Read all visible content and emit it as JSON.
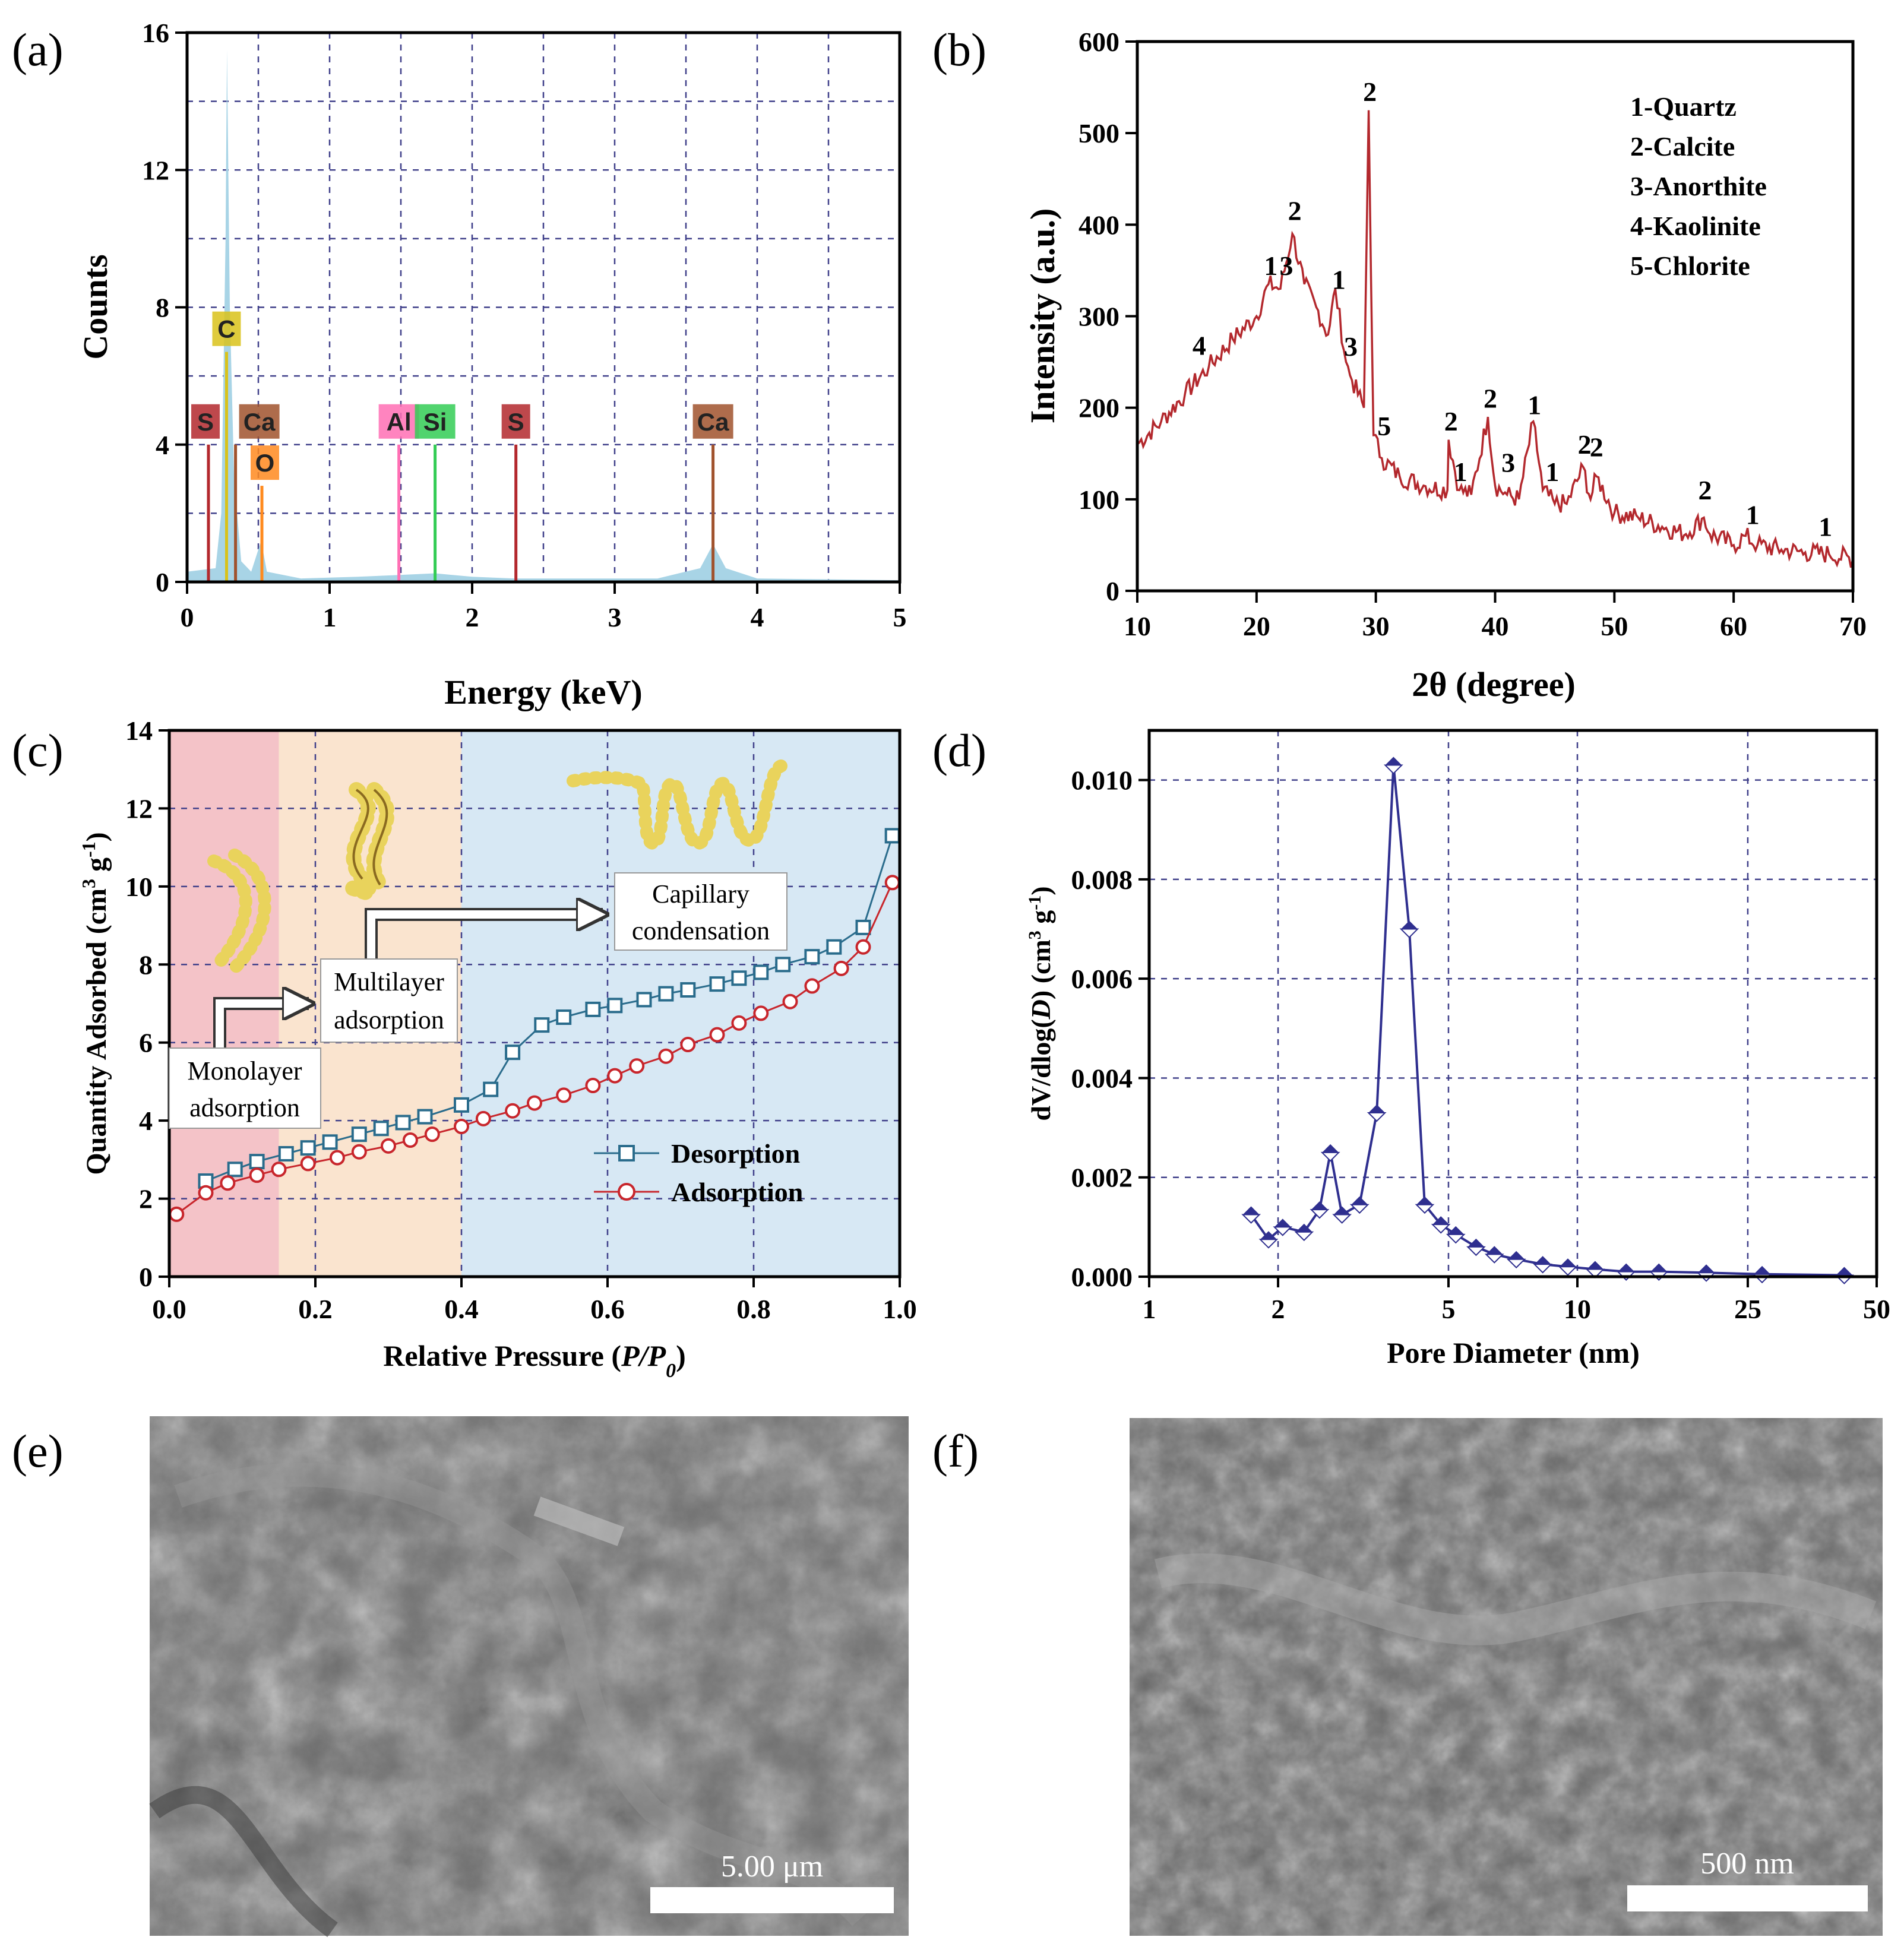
{
  "panel_labels": [
    "(a)",
    "(b)",
    "(c)",
    "(d)",
    "(e)",
    "(f)"
  ],
  "colors": {
    "eds_fill": "#a8d4e6",
    "xrd_line": "#b3282d",
    "desorption": "#2a6c8c",
    "adsorption": "#c8262c",
    "psd_line": "#2f2f8f",
    "zone1": "#f4c3c8",
    "zone2": "#fae4cf",
    "zone3": "#d7e8f4"
  },
  "chart_data": [
    {
      "panel": "(a)",
      "type": "area",
      "xlabel": "Energy (keV)",
      "ylabel": "Counts",
      "xlim": [
        0,
        5
      ],
      "ylim": [
        0,
        16
      ],
      "xticks": [
        0,
        1,
        2,
        3,
        4,
        5
      ],
      "yticks": [
        0,
        4,
        8,
        12,
        16
      ],
      "spectrum": [
        [
          0.0,
          0.3
        ],
        [
          0.2,
          0.4
        ],
        [
          0.24,
          2.0
        ],
        [
          0.27,
          10.0
        ],
        [
          0.28,
          15.5
        ],
        [
          0.3,
          8.0
        ],
        [
          0.33,
          3.0
        ],
        [
          0.38,
          0.6
        ],
        [
          0.45,
          0.3
        ],
        [
          0.52,
          1.2
        ],
        [
          0.56,
          0.3
        ],
        [
          0.8,
          0.1
        ],
        [
          1.2,
          0.15
        ],
        [
          1.48,
          0.2
        ],
        [
          1.74,
          0.25
        ],
        [
          2.0,
          0.15
        ],
        [
          2.3,
          0.1
        ],
        [
          3.3,
          0.1
        ],
        [
          3.6,
          0.4
        ],
        [
          3.69,
          1.1
        ],
        [
          3.78,
          0.4
        ],
        [
          4.0,
          0.1
        ],
        [
          5.0,
          0.05
        ]
      ],
      "element_lines": [
        {
          "element": "S",
          "energy": 0.15,
          "height": 4.0,
          "color": "#b3282d"
        },
        {
          "element": "C",
          "energy": 0.277,
          "height": 6.7,
          "color": "#d9c21a"
        },
        {
          "element": "Ca",
          "energy": 0.34,
          "height": 4.0,
          "color": "#a0522d"
        },
        {
          "element": "O",
          "energy": 0.525,
          "height": 2.8,
          "color": "#ff8a1e"
        },
        {
          "element": "Al",
          "energy": 1.486,
          "height": 4.0,
          "color": "#ff6fb4"
        },
        {
          "element": "Si",
          "energy": 1.74,
          "height": 4.0,
          "color": "#33cc55"
        },
        {
          "element": "S",
          "energy": 2.307,
          "height": 4.0,
          "color": "#b3282d"
        },
        {
          "element": "Ca",
          "energy": 3.69,
          "height": 4.0,
          "color": "#a0522d"
        }
      ]
    },
    {
      "panel": "(b)",
      "type": "line",
      "xlabel": "2θ (degree)",
      "ylabel": "Intensity (a.u.)",
      "xlim": [
        10,
        70
      ],
      "ylim": [
        0,
        600
      ],
      "xticks": [
        10,
        20,
        30,
        40,
        50,
        60,
        70
      ],
      "yticks": [
        0,
        100,
        200,
        300,
        400,
        500,
        600
      ],
      "series": [
        {
          "name": "XRD",
          "points": [
            [
              10,
              160
            ],
            [
              12,
              185
            ],
            [
              14,
              215
            ],
            [
              16,
              245
            ],
            [
              18,
              275
            ],
            [
              20,
              300
            ],
            [
              21,
              335
            ],
            [
              22,
              330
            ],
            [
              23,
              390
            ],
            [
              24,
              335
            ],
            [
              25,
              310
            ],
            [
              26,
              280
            ],
            [
              26.6,
              330
            ],
            [
              27.5,
              250
            ],
            [
              28,
              230
            ],
            [
              29,
              200
            ],
            [
              29.4,
              525
            ],
            [
              29.8,
              170
            ],
            [
              30.5,
              145
            ],
            [
              32,
              125
            ],
            [
              34,
              115
            ],
            [
              36,
              110
            ],
            [
              36.1,
              165
            ],
            [
              37,
              110
            ],
            [
              38,
              105
            ],
            [
              39.4,
              190
            ],
            [
              40,
              115
            ],
            [
              41,
              105
            ],
            [
              42,
              100
            ],
            [
              43.2,
              185
            ],
            [
              44,
              110
            ],
            [
              45,
              95
            ],
            [
              46,
              95
            ],
            [
              47.4,
              135
            ],
            [
              48,
              100
            ],
            [
              48.5,
              125
            ],
            [
              50,
              85
            ],
            [
              52,
              80
            ],
            [
              54,
              70
            ],
            [
              56,
              62
            ],
            [
              57.5,
              80
            ],
            [
              58,
              62
            ],
            [
              60,
              50
            ],
            [
              61,
              60
            ],
            [
              62,
              50
            ],
            [
              64,
              45
            ],
            [
              66,
              42
            ],
            [
              68,
              40
            ],
            [
              70,
              35
            ]
          ]
        }
      ],
      "peak_labels": [
        {
          "text": "4",
          "x": 15.2,
          "y": 258
        },
        {
          "text": "1",
          "x": 21.2,
          "y": 345
        },
        {
          "text": "3",
          "x": 22.5,
          "y": 345
        },
        {
          "text": "2",
          "x": 23.2,
          "y": 405
        },
        {
          "text": "1",
          "x": 26.9,
          "y": 330
        },
        {
          "text": "3",
          "x": 27.9,
          "y": 257
        },
        {
          "text": "2",
          "x": 29.5,
          "y": 535
        },
        {
          "text": "5",
          "x": 30.7,
          "y": 170
        },
        {
          "text": "2",
          "x": 36.3,
          "y": 175
        },
        {
          "text": "1",
          "x": 37.1,
          "y": 120
        },
        {
          "text": "2",
          "x": 39.6,
          "y": 200
        },
        {
          "text": "3",
          "x": 41.1,
          "y": 130
        },
        {
          "text": "1",
          "x": 43.3,
          "y": 193
        },
        {
          "text": "1",
          "x": 44.8,
          "y": 120
        },
        {
          "text": "2",
          "x": 47.5,
          "y": 150
        },
        {
          "text": "2",
          "x": 48.5,
          "y": 147
        },
        {
          "text": "2",
          "x": 57.6,
          "y": 100
        },
        {
          "text": "1",
          "x": 61.6,
          "y": 73
        },
        {
          "text": "1",
          "x": 67.7,
          "y": 60
        }
      ],
      "legend": [
        "1-Quartz",
        "2-Calcite",
        "3-Anorthite",
        "4-Kaolinite",
        "5-Chlorite"
      ]
    },
    {
      "panel": "(c)",
      "type": "line",
      "xlabel": "Relative Pressure (",
      "xlabel_p": "P",
      "xlabel_slash": "/",
      "xlabel_p0": "P",
      "xlabel_sub": "0",
      "xlabel_end": ")",
      "ylabel": "Quantity Adsorbed (cm",
      "ylabel_sup3": "3",
      "ylabel_g": " g",
      "ylabel_supneg": "-1",
      "ylabel_end": ")",
      "xlim": [
        0.0,
        1.0
      ],
      "ylim": [
        0,
        14
      ],
      "xticks": [
        "0.0",
        "0.2",
        "0.4",
        "0.6",
        "0.8",
        "1.0"
      ],
      "yticks": [
        0,
        2,
        4,
        6,
        8,
        10,
        12,
        14
      ],
      "zones": [
        0.15,
        0.4
      ],
      "series": [
        {
          "name": "Desorption",
          "points": [
            [
              0.05,
              2.45
            ],
            [
              0.09,
              2.75
            ],
            [
              0.12,
              2.95
            ],
            [
              0.16,
              3.15
            ],
            [
              0.19,
              3.3
            ],
            [
              0.22,
              3.45
            ],
            [
              0.26,
              3.65
            ],
            [
              0.29,
              3.8
            ],
            [
              0.32,
              3.95
            ],
            [
              0.35,
              4.1
            ],
            [
              0.4,
              4.4
            ],
            [
              0.44,
              4.8
            ],
            [
              0.47,
              5.75
            ],
            [
              0.51,
              6.45
            ],
            [
              0.54,
              6.65
            ],
            [
              0.58,
              6.85
            ],
            [
              0.61,
              6.95
            ],
            [
              0.65,
              7.1
            ],
            [
              0.68,
              7.25
            ],
            [
              0.71,
              7.35
            ],
            [
              0.75,
              7.5
            ],
            [
              0.78,
              7.65
            ],
            [
              0.81,
              7.8
            ],
            [
              0.84,
              8.0
            ],
            [
              0.88,
              8.2
            ],
            [
              0.91,
              8.45
            ],
            [
              0.95,
              8.95
            ],
            [
              0.99,
              11.3
            ]
          ]
        },
        {
          "name": "Adsorption",
          "points": [
            [
              0.01,
              1.6
            ],
            [
              0.05,
              2.15
            ],
            [
              0.08,
              2.4
            ],
            [
              0.12,
              2.6
            ],
            [
              0.15,
              2.75
            ],
            [
              0.19,
              2.9
            ],
            [
              0.23,
              3.05
            ],
            [
              0.26,
              3.2
            ],
            [
              0.3,
              3.35
            ],
            [
              0.33,
              3.5
            ],
            [
              0.36,
              3.65
            ],
            [
              0.4,
              3.85
            ],
            [
              0.43,
              4.05
            ],
            [
              0.47,
              4.25
            ],
            [
              0.5,
              4.45
            ],
            [
              0.54,
              4.65
            ],
            [
              0.58,
              4.9
            ],
            [
              0.61,
              5.15
            ],
            [
              0.64,
              5.4
            ],
            [
              0.68,
              5.65
            ],
            [
              0.71,
              5.95
            ],
            [
              0.75,
              6.2
            ],
            [
              0.78,
              6.5
            ],
            [
              0.81,
              6.75
            ],
            [
              0.85,
              7.05
            ],
            [
              0.88,
              7.45
            ],
            [
              0.92,
              7.9
            ],
            [
              0.95,
              8.45
            ],
            [
              0.99,
              10.1
            ]
          ]
        }
      ],
      "annotations": {
        "mono_line1": "Monolayer",
        "mono_line2": "adsorption",
        "multi_line1": "Multilayer",
        "multi_line2": "adsorption",
        "cap_line1": "Capillary",
        "cap_line2": "condensation"
      }
    },
    {
      "panel": "(d)",
      "type": "line",
      "xlabel": "Pore Diameter (nm)",
      "ylabel_pre": "dV/dlog(",
      "ylabel_d": "D",
      "ylabel_mid": ") (cm",
      "ylabel_sup3": "3",
      "ylabel_g": " g",
      "ylabel_supneg": "-1",
      "ylabel_end": ")",
      "xscale": "log",
      "xlim": [
        1,
        50
      ],
      "ylim": [
        0.0,
        0.011
      ],
      "xticks": [
        1,
        2,
        5,
        10,
        25,
        50
      ],
      "yticks": [
        "0.000",
        "0.002",
        "0.004",
        "0.006",
        "0.008",
        "0.010"
      ],
      "series": [
        {
          "name": "PSD",
          "points": [
            [
              1.73,
              0.00125
            ],
            [
              1.9,
              0.00075
            ],
            [
              2.05,
              0.001
            ],
            [
              2.3,
              0.0009
            ],
            [
              2.5,
              0.00135
            ],
            [
              2.65,
              0.0025
            ],
            [
              2.82,
              0.00125
            ],
            [
              3.1,
              0.00145
            ],
            [
              3.4,
              0.0033
            ],
            [
              3.72,
              0.0103
            ],
            [
              4.05,
              0.007
            ],
            [
              4.4,
              0.00145
            ],
            [
              4.8,
              0.00105
            ],
            [
              5.2,
              0.00085
            ],
            [
              5.8,
              0.0006
            ],
            [
              6.4,
              0.00045
            ],
            [
              7.2,
              0.00035
            ],
            [
              8.3,
              0.00025
            ],
            [
              9.5,
              0.0002
            ],
            [
              11,
              0.00015
            ],
            [
              13,
              0.0001
            ],
            [
              15.5,
              0.0001
            ],
            [
              20,
              8e-05
            ],
            [
              27,
              5e-05
            ],
            [
              42,
              3e-05
            ]
          ]
        }
      ]
    }
  ],
  "legend_c": {
    "desorption": "Desorption",
    "adsorption": "Adsorption"
  },
  "sem": {
    "scale_e": "5.00 μm",
    "scale_f": "500 nm"
  }
}
